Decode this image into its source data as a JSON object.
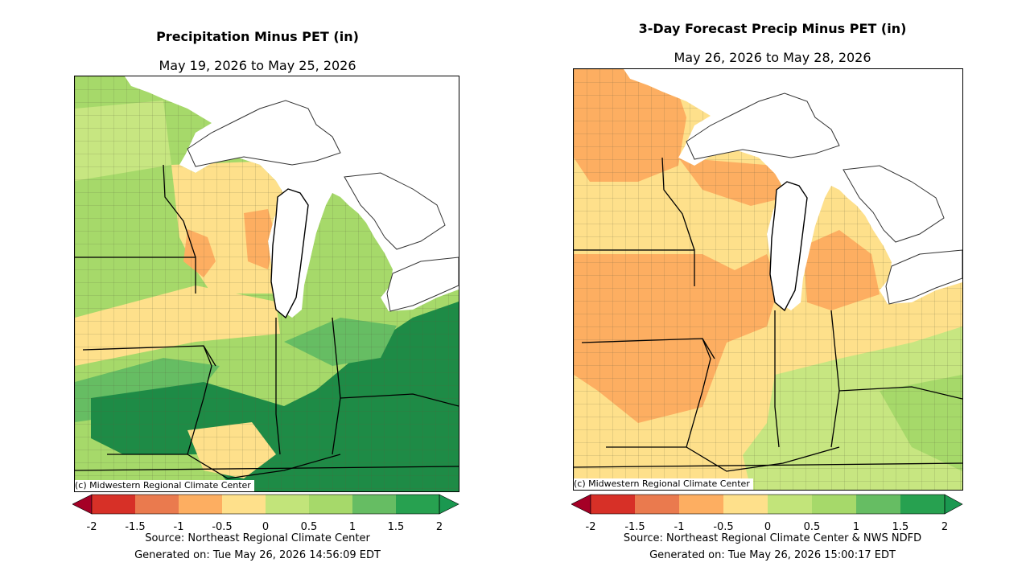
{
  "colorbar": {
    "ticks": [
      "-2",
      "-1.5",
      "-1",
      "-0.5",
      "0",
      "0.5",
      "1",
      "1.5",
      "2"
    ],
    "under_color": "#a50026",
    "over_color": "#1a9850",
    "colors": [
      "#d73027",
      "#ea7a4e",
      "#fdae61",
      "#fee08b",
      "#c2e47a",
      "#a6d96a",
      "#66bd63",
      "#27a150"
    ]
  },
  "land_colors": {
    "dark_green": "#1e8b46",
    "green": "#66bd63",
    "light_green": "#a6d96a",
    "pale_green": "#c7e681",
    "yellow": "#fee08b",
    "orange": "#fdae61"
  },
  "left": {
    "title": "Precipitation Minus PET (in)",
    "subtitle": "May 19, 2026 to May 25, 2026",
    "credit": "(c) Midwestern Regional Climate Center",
    "source": "Source: Northeast Regional Climate Center",
    "generated": "Generated on: Tue May 26, 2026 14:56:09 EDT"
  },
  "right": {
    "title": "3-Day Forecast Precip Minus PET (in)",
    "subtitle": "May 26, 2026 to May 28, 2026",
    "credit": "(c) Midwestern Regional Climate Center",
    "source": "Source: Northeast Regional Climate Center & NWS NDFD",
    "generated": "Generated on: Tue May 26, 2026 15:00:17 EDT"
  }
}
